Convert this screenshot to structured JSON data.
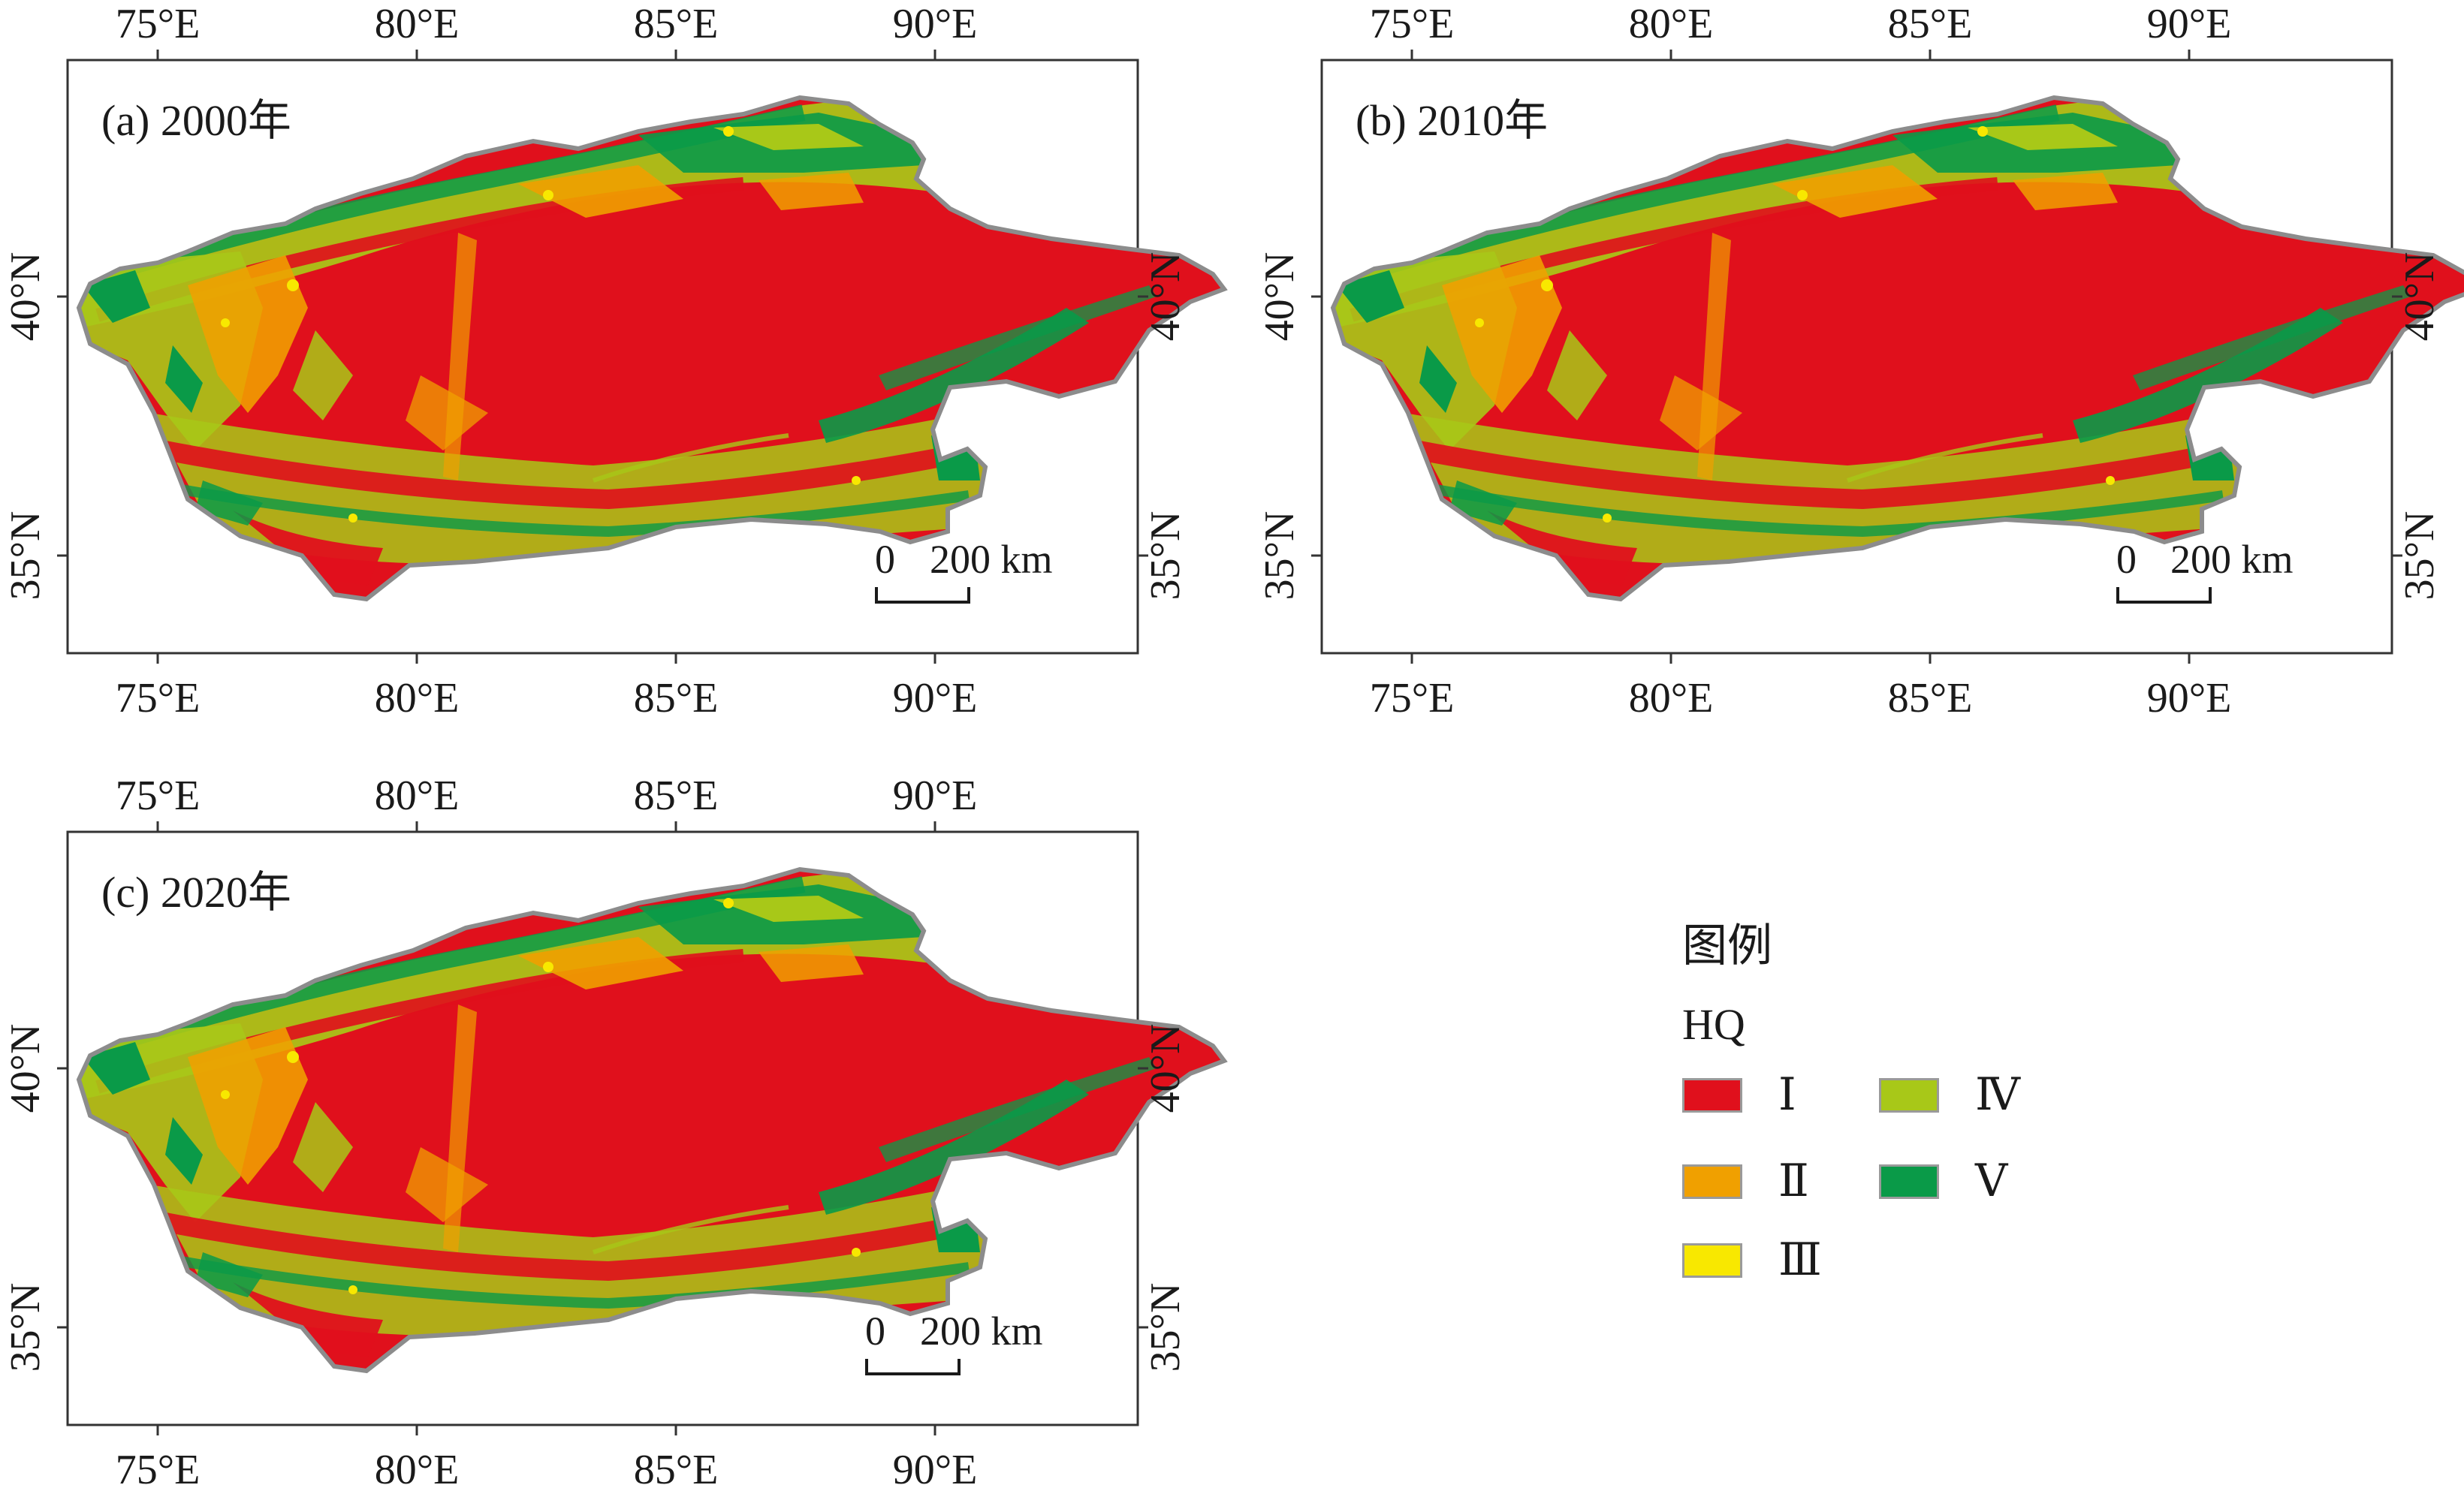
{
  "colors": {
    "I": "#e0101c",
    "II": "#f0a000",
    "III": "#f8e800",
    "IV": "#a8c818",
    "V": "#0a9a48",
    "outline": "#8c8c8c",
    "frame": "#333333"
  },
  "axes": {
    "lon_labels": [
      "75°E",
      "80°E",
      "85°E",
      "90°E"
    ],
    "lat_labels": [
      "40°N",
      "35°N"
    ]
  },
  "panels": [
    {
      "id": "a",
      "title": "(a) 2000年",
      "scale_zero": "0",
      "scale_label": "200 km"
    },
    {
      "id": "b",
      "title": "(b) 2010年",
      "scale_zero": "0",
      "scale_label": "200 km"
    },
    {
      "id": "c",
      "title": "(c) 2020年",
      "scale_zero": "0",
      "scale_label": "200 km"
    }
  ],
  "legend": {
    "title": "图例",
    "subtitle": "HQ",
    "items": [
      {
        "label": "Ⅰ",
        "color": "#e0101c"
      },
      {
        "label": "Ⅱ",
        "color": "#f0a000"
      },
      {
        "label": "Ⅲ",
        "color": "#f8e800"
      },
      {
        "label": "Ⅳ",
        "color": "#a8c818"
      },
      {
        "label": "Ⅴ",
        "color": "#0a9a48"
      }
    ]
  }
}
